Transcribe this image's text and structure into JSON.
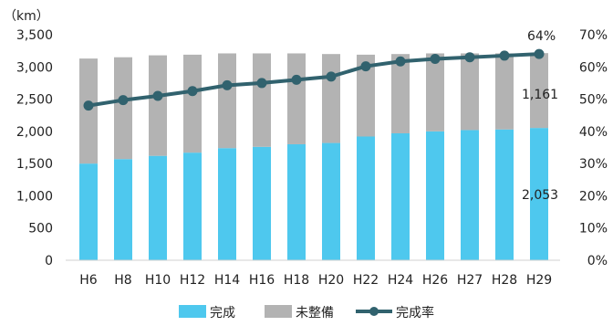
{
  "chart_data": {
    "type": "bar",
    "stacked": true,
    "categories": [
      "H6",
      "H8",
      "H10",
      "H12",
      "H14",
      "H16",
      "H18",
      "H20",
      "H22",
      "H24",
      "H26",
      "H27",
      "H28",
      "H29"
    ],
    "series": [
      {
        "name": "完成",
        "kind": "bar",
        "axis": "left",
        "color": "#4ec8ee",
        "values": [
          1500,
          1570,
          1620,
          1670,
          1740,
          1760,
          1800,
          1820,
          1920,
          1970,
          2000,
          2020,
          2030,
          2053
        ]
      },
      {
        "name": "未整備",
        "kind": "bar",
        "axis": "left",
        "color": "#b3b3b3",
        "values": [
          1630,
          1580,
          1560,
          1520,
          1470,
          1450,
          1410,
          1380,
          1270,
          1230,
          1210,
          1190,
          1180,
          1161
        ]
      },
      {
        "name": "完成率",
        "kind": "line",
        "axis": "right",
        "color": "#31626e",
        "values": [
          48,
          49.7,
          51,
          52.5,
          54.3,
          55,
          56,
          57,
          60.2,
          61.7,
          62.5,
          63,
          63.5,
          64
        ]
      }
    ],
    "y_left": {
      "unit": "（km）",
      "min": 0,
      "max": 3500,
      "step": 500,
      "tick_labels": [
        "0",
        "500",
        "1,000",
        "1,500",
        "2,000",
        "2,500",
        "3,000",
        "3,500"
      ]
    },
    "y_right": {
      "min": 0,
      "max": 70,
      "step": 10,
      "tick_labels": [
        "0%",
        "10%",
        "20%",
        "30%",
        "40%",
        "50%",
        "60%",
        "70%"
      ]
    },
    "annotations": {
      "rate_last": "64%",
      "missing_last": "1,161",
      "done_last": "2,053"
    },
    "legend": {
      "position": "bottom"
    },
    "grid": false
  }
}
